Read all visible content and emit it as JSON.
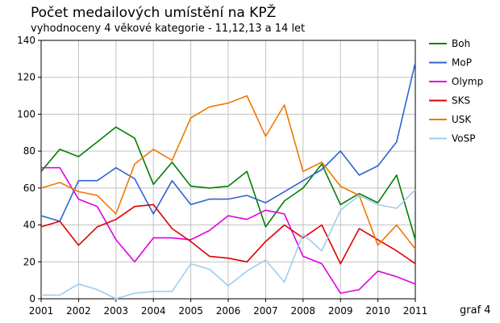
{
  "chart_data": {
    "type": "line",
    "title": "Počet medailových umístění na KPŽ",
    "subtitle": "vyhodnoceny 4 věkové kategorie - 11,12,13 a 14 let",
    "note": "graf 4",
    "ylim": [
      0,
      140
    ],
    "yticks": [
      0,
      20,
      40,
      60,
      80,
      100,
      120,
      140
    ],
    "xlim": [
      2001,
      2011
    ],
    "xticks": [
      2001,
      2002,
      2003,
      2004,
      2005,
      2006,
      2007,
      2008,
      2009,
      2010,
      2011
    ],
    "grid": true,
    "legend_position": "right",
    "x": [
      2001.0,
      2001.5,
      2002.0,
      2002.5,
      2003.0,
      2003.5,
      2004.0,
      2004.5,
      2005.0,
      2005.5,
      2006.0,
      2006.5,
      2007.0,
      2007.5,
      2008.0,
      2008.5,
      2009.0,
      2009.5,
      2010.0,
      2010.5,
      2011.0
    ],
    "series": [
      {
        "name": "Boh",
        "color": "#007f00",
        "values": [
          69,
          81,
          77,
          85,
          93,
          87,
          62,
          74,
          61,
          60,
          61,
          69,
          39,
          53,
          60,
          73,
          51,
          57,
          52,
          67,
          32
        ]
      },
      {
        "name": "MoP",
        "color": "#3063d0",
        "values": [
          45,
          42,
          64,
          64,
          71,
          65,
          46,
          64,
          51,
          54,
          54,
          56,
          52,
          58,
          64,
          70,
          80,
          67,
          72,
          85,
          128
        ]
      },
      {
        "name": "Olymp",
        "color": "#e000e0",
        "values": [
          71,
          71,
          54,
          50,
          32,
          20,
          33,
          33,
          32,
          37,
          45,
          43,
          48,
          46,
          23,
          19,
          3,
          5,
          15,
          12,
          8
        ]
      },
      {
        "name": "SKS",
        "color": "#e00000",
        "values": [
          39,
          42,
          29,
          39,
          43,
          50,
          51,
          38,
          31,
          23,
          22,
          20,
          31,
          40,
          33,
          40,
          19,
          38,
          32,
          26,
          19
        ]
      },
      {
        "name": "USK",
        "color": "#f07800",
        "values": [
          60,
          63,
          58,
          56,
          46,
          73,
          81,
          75,
          98,
          104,
          106,
          110,
          88,
          105,
          69,
          74,
          61,
          56,
          29,
          40,
          27
        ]
      },
      {
        "name": "VoSP",
        "color": "#a0ccee",
        "values": [
          2,
          2,
          8,
          5,
          0,
          3,
          4,
          4,
          19,
          16,
          7,
          15,
          21,
          9,
          35,
          26,
          48,
          56,
          51,
          49,
          59
        ]
      }
    ]
  }
}
